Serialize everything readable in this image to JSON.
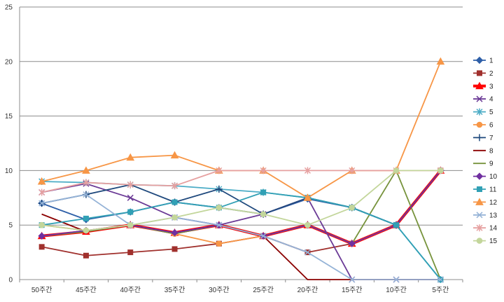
{
  "chart_data": {
    "type": "line",
    "categories": [
      "50주간",
      "45주간",
      "40주간",
      "35주간",
      "30주간",
      "25주간",
      "20주간",
      "15주간",
      "10주간",
      "5주간"
    ],
    "ylim": [
      0,
      25
    ],
    "yticks": [
      0,
      5,
      10,
      15,
      20,
      25
    ],
    "grid": "horizontal",
    "legend_position": "right",
    "series": [
      {
        "name": "1",
        "color": "#2E5FA8",
        "marker": "diamond",
        "values": [
          7.0,
          5.5,
          6.2,
          7.1,
          6.6,
          6.0,
          7.4,
          6.6,
          5.0,
          10.0
        ]
      },
      {
        "name": "2",
        "color": "#A0302D",
        "marker": "square",
        "values": [
          3.0,
          2.2,
          2.5,
          2.8,
          3.3,
          4.0,
          2.5,
          3.3,
          5.0,
          10.0
        ]
      },
      {
        "name": "3",
        "color": "#FF0000",
        "marker": "triangle",
        "width": 4,
        "values": [
          4.0,
          4.4,
          5.0,
          4.3,
          5.0,
          4.0,
          5.0,
          3.3,
          5.0,
          10.0
        ]
      },
      {
        "name": "4",
        "color": "#6B3A96",
        "marker": "x",
        "values": [
          8.0,
          8.8,
          7.5,
          5.7,
          5.0,
          6.0,
          7.5,
          0.0,
          0.0,
          0.0
        ]
      },
      {
        "name": "5",
        "color": "#4BACC6",
        "marker": "star",
        "values": [
          9.0,
          8.9,
          8.7,
          8.6,
          8.3,
          8.0,
          7.5,
          6.6,
          5.0,
          0.0
        ]
      },
      {
        "name": "6",
        "color": "#F79646",
        "marker": "circle",
        "values": [
          5.0,
          4.5,
          5.0,
          4.2,
          3.3,
          4.0,
          5.0,
          3.3,
          5.0,
          10.0
        ]
      },
      {
        "name": "7",
        "color": "#1F497D",
        "marker": "plus",
        "values": [
          7.0,
          7.8,
          8.7,
          7.1,
          8.3,
          6.0,
          7.5,
          6.6,
          5.0,
          10.0
        ]
      },
      {
        "name": "8",
        "color": "#8B0000",
        "marker": "none",
        "values": [
          6.0,
          4.4,
          5.0,
          4.2,
          5.0,
          4.0,
          0.0,
          0.0,
          0.0,
          0.0
        ]
      },
      {
        "name": "9",
        "color": "#77933C",
        "marker": "none",
        "values": [
          4.0,
          4.4,
          5.0,
          4.2,
          5.0,
          4.0,
          5.0,
          3.3,
          10.0,
          0.0
        ]
      },
      {
        "name": "10",
        "color": "#7030A0",
        "marker": "diamond",
        "values": [
          4.0,
          4.5,
          5.0,
          4.3,
          5.0,
          4.0,
          5.0,
          3.3,
          5.0,
          10.0
        ]
      },
      {
        "name": "11",
        "color": "#31A0B5",
        "marker": "square",
        "values": [
          5.0,
          5.6,
          6.2,
          7.1,
          6.6,
          8.0,
          7.5,
          6.6,
          5.0,
          0.0
        ]
      },
      {
        "name": "12",
        "color": "#F79646",
        "marker": "triangle",
        "values": [
          9.0,
          10.0,
          11.2,
          11.4,
          10.0,
          10.0,
          7.5,
          10.0,
          10.0,
          20.0
        ]
      },
      {
        "name": "13",
        "color": "#95B3D7",
        "marker": "x",
        "values": [
          7.0,
          7.8,
          5.0,
          5.7,
          5.0,
          4.0,
          2.5,
          0.0,
          0.0,
          0.0
        ]
      },
      {
        "name": "14",
        "color": "#E6A0A0",
        "marker": "star",
        "values": [
          8.0,
          8.9,
          8.7,
          8.6,
          10.0,
          10.0,
          10.0,
          10.0,
          10.0,
          10.0
        ]
      },
      {
        "name": "15",
        "color": "#C3D69B",
        "marker": "circle",
        "values": [
          5.0,
          4.5,
          5.0,
          5.7,
          6.6,
          6.0,
          5.0,
          6.6,
          10.0,
          10.0
        ]
      }
    ]
  }
}
